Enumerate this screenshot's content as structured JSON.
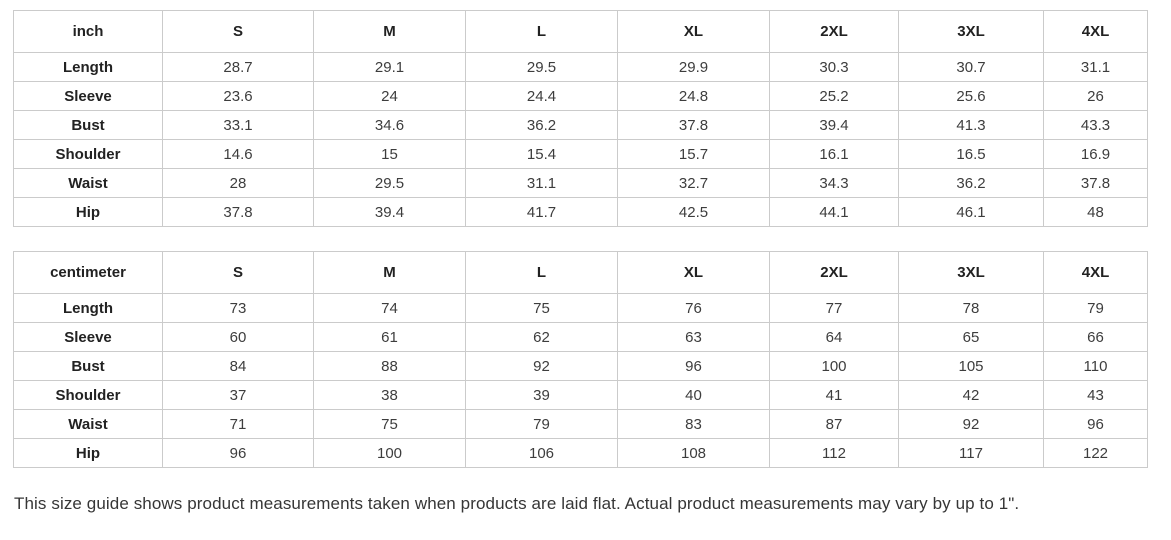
{
  "page": {
    "note": "This size guide shows product measurements taken when products are laid flat. Actual product measurements may vary by up to 1\"."
  },
  "colors": {
    "background": "#ffffff",
    "table_border": "#cbcbcb",
    "heading_text": "#222222",
    "value_text": "#3d3d3d",
    "note_text": "#363636"
  },
  "tables": [
    {
      "unit_label": "inch",
      "sizes": [
        "S",
        "M",
        "L",
        "XL",
        "2XL",
        "3XL",
        "4XL"
      ],
      "rows": [
        {
          "label": "Length",
          "values": [
            "28.7",
            "29.1",
            "29.5",
            "29.9",
            "30.3",
            "30.7",
            "31.1"
          ]
        },
        {
          "label": "Sleeve",
          "values": [
            "23.6",
            "24",
            "24.4",
            "24.8",
            "25.2",
            "25.6",
            "26"
          ]
        },
        {
          "label": "Bust",
          "values": [
            "33.1",
            "34.6",
            "36.2",
            "37.8",
            "39.4",
            "41.3",
            "43.3"
          ]
        },
        {
          "label": "Shoulder",
          "values": [
            "14.6",
            "15",
            "15.4",
            "15.7",
            "16.1",
            "16.5",
            "16.9"
          ]
        },
        {
          "label": "Waist",
          "values": [
            "28",
            "29.5",
            "31.1",
            "32.7",
            "34.3",
            "36.2",
            "37.8"
          ]
        },
        {
          "label": "Hip",
          "values": [
            "37.8",
            "39.4",
            "41.7",
            "42.5",
            "44.1",
            "46.1",
            "48"
          ]
        }
      ]
    },
    {
      "unit_label": "centimeter",
      "sizes": [
        "S",
        "M",
        "L",
        "XL",
        "2XL",
        "3XL",
        "4XL"
      ],
      "rows": [
        {
          "label": "Length",
          "values": [
            "73",
            "74",
            "75",
            "76",
            "77",
            "78",
            "79"
          ]
        },
        {
          "label": "Sleeve",
          "values": [
            "60",
            "61",
            "62",
            "63",
            "64",
            "65",
            "66"
          ]
        },
        {
          "label": "Bust",
          "values": [
            "84",
            "88",
            "92",
            "96",
            "100",
            "105",
            "110"
          ]
        },
        {
          "label": "Shoulder",
          "values": [
            "37",
            "38",
            "39",
            "40",
            "41",
            "42",
            "43"
          ]
        },
        {
          "label": "Waist",
          "values": [
            "71",
            "75",
            "79",
            "83",
            "87",
            "92",
            "96"
          ]
        },
        {
          "label": "Hip",
          "values": [
            "96",
            "100",
            "106",
            "108",
            "112",
            "117",
            "122"
          ]
        }
      ]
    }
  ]
}
